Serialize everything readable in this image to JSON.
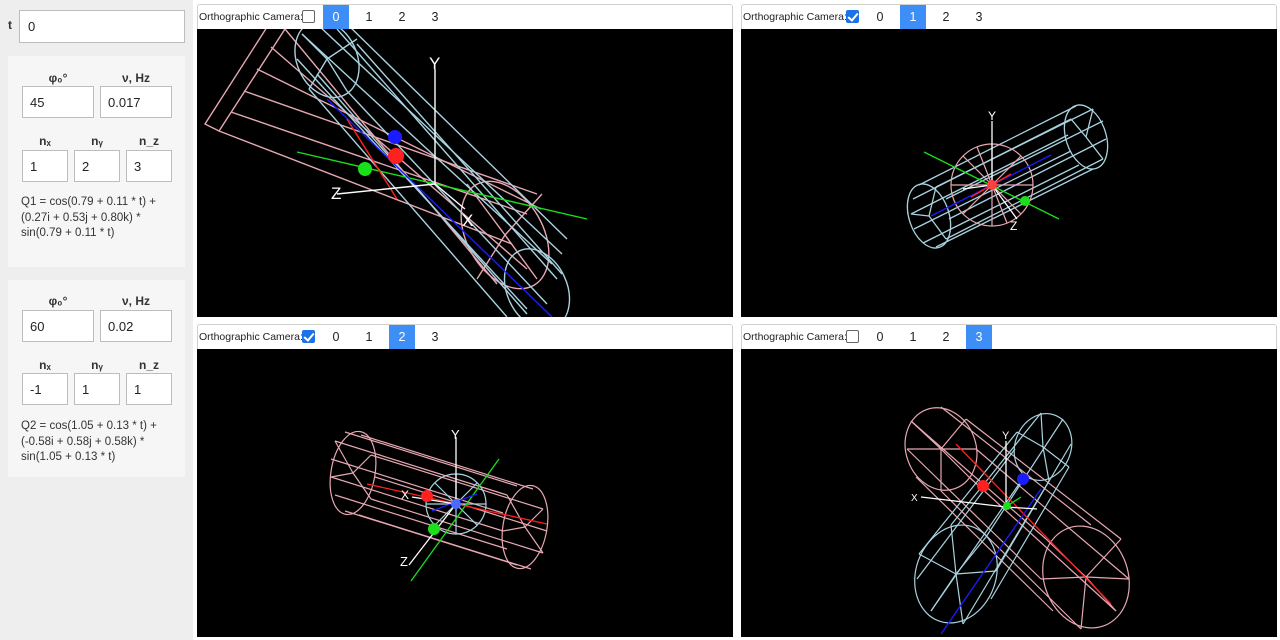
{
  "sidebar": {
    "t": {
      "label": "t",
      "value": "0"
    },
    "q1": {
      "phi_label": "φ₀°",
      "nu_label": "ν, Hz",
      "phi": "45",
      "nu": "0.017",
      "nx_label": "nₓ",
      "ny_label": "nᵧ",
      "nz_label": "n_z",
      "nx": "1",
      "ny": "2",
      "nz": "3",
      "formula": [
        "Q1 = cos(0.79 + 0.11 * t) +",
        "(0.27i + 0.53j + 0.80k) *",
        "sin(0.79 + 0.11 * t)"
      ]
    },
    "q2": {
      "phi_label": "φ₀°",
      "nu_label": "ν, Hz",
      "phi": "60",
      "nu": "0.02",
      "nx_label": "nₓ",
      "ny_label": "nᵧ",
      "nz_label": "n_z",
      "nx": "-1",
      "ny": "1",
      "nz": "1",
      "formula": [
        "Q2 = cos(1.05 + 0.13 * t) +",
        "(-0.58i + 0.58j + 0.58k) *",
        "sin(1.05 + 0.13 * t)"
      ]
    }
  },
  "views": [
    {
      "camera_label": "Orthographic Camera:",
      "orthographic": false,
      "tabs": [
        "0",
        "1",
        "2",
        "3"
      ],
      "active_tab": 0,
      "axis_labels": [
        "Y",
        "Z",
        "X"
      ]
    },
    {
      "camera_label": "Orthographic Camera:",
      "orthographic": true,
      "tabs": [
        "0",
        "1",
        "2",
        "3"
      ],
      "active_tab": 1,
      "axis_labels": [
        "Y",
        "Z"
      ]
    },
    {
      "camera_label": "Orthographic Camera:",
      "orthographic": true,
      "tabs": [
        "0",
        "1",
        "2",
        "3"
      ],
      "active_tab": 2,
      "axis_labels": [
        "Y",
        "X",
        "Z"
      ]
    },
    {
      "camera_label": "Orthographic Camera:",
      "orthographic": false,
      "tabs": [
        "0",
        "1",
        "2",
        "3"
      ],
      "active_tab": 3,
      "axis_labels": [
        "Y",
        "X"
      ]
    }
  ],
  "colors": {
    "pink_wire": "#e7a8b2",
    "cyan_wire": "#a9d3e0",
    "red": "#ff2020",
    "green": "#19e019",
    "blue": "#1b1bff",
    "active_tab": "#3e8ef7",
    "canvas_bg": "#000000"
  }
}
